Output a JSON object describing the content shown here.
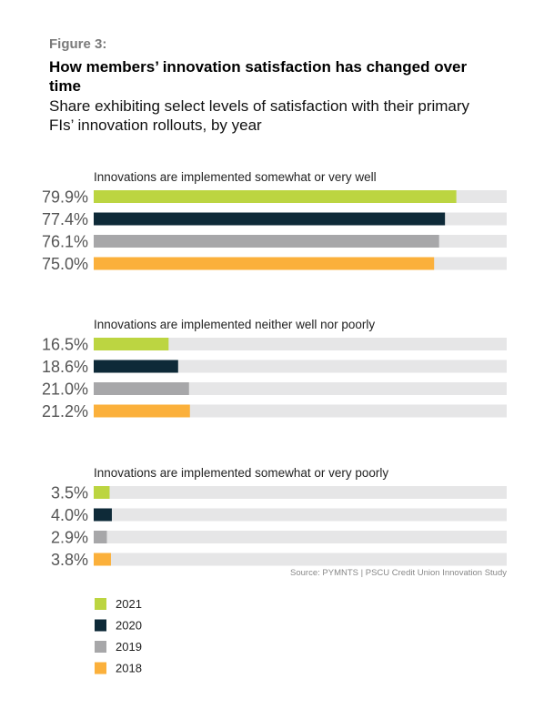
{
  "header": {
    "figure_label": "Figure 3:",
    "title": "How members’ innovation satisfaction has changed over time",
    "subtitle": "Share exhibiting select levels of satisfaction with their primary FIs’ innovation rollouts, by year"
  },
  "source": "Source: PYMNTS | PSCU Credit Union Innovation Study",
  "colors": {
    "2021": "#bcd541",
    "2020": "#0e2a38",
    "2019": "#a7a7a9",
    "2018": "#fbb03b",
    "track": "#e6e6e7"
  },
  "chart_data": {
    "type": "bar",
    "orientation": "horizontal",
    "xlim": [
      0,
      100
    ],
    "legend_position": "bottom-left",
    "series_names": [
      "2021",
      "2020",
      "2019",
      "2018"
    ],
    "groups": [
      {
        "title": "Innovations are implemented somewhat or very well",
        "values": [
          79.9,
          77.4,
          76.1,
          75.0
        ],
        "labels": [
          "79.9%",
          "77.4%",
          "76.1%",
          "75.0%"
        ]
      },
      {
        "title": "Innovations are implemented neither well nor poorly",
        "values": [
          16.5,
          18.6,
          21.0,
          21.2
        ],
        "labels": [
          "16.5%",
          "18.6%",
          "21.0%",
          "21.2%"
        ]
      },
      {
        "title": "Innovations are implemented somewhat or very poorly",
        "values": [
          3.5,
          4.0,
          2.9,
          3.8
        ],
        "labels": [
          "3.5%",
          "4.0%",
          "2.9%",
          "3.8%"
        ]
      }
    ]
  }
}
